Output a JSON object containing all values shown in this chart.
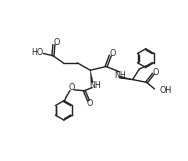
{
  "bg_color": "#ffffff",
  "line_color": "#222222",
  "line_width": 1.0,
  "font_size": 5.8,
  "fig_width": 1.88,
  "fig_height": 1.61,
  "dpi": 100,
  "xlim": [
    0,
    10
  ],
  "ylim": [
    0,
    8.5
  ]
}
